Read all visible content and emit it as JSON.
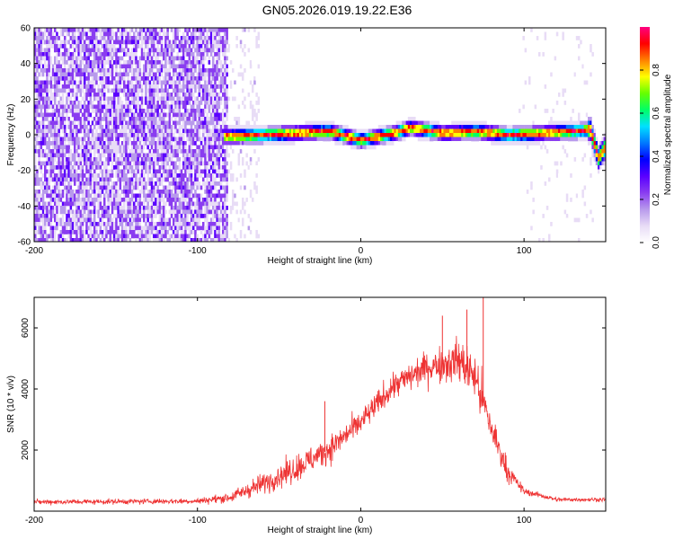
{
  "title": "GN05.2026.019.19.22.E36",
  "colorbar": {
    "label": "Normalized spectral amplitude",
    "ticks": [
      0.0,
      0.2,
      0.4,
      0.6,
      0.8
    ],
    "range": [
      0,
      1
    ],
    "colormap": [
      "#ffffff",
      "#e8dcf6",
      "#b89aec",
      "#8a3df0",
      "#5a00ff",
      "#0000ff",
      "#0078ff",
      "#00e0ff",
      "#00ff66",
      "#66ff00",
      "#ffff00",
      "#ff8000",
      "#ff0000",
      "#ff0080"
    ]
  },
  "chart_data": [
    {
      "type": "heatmap",
      "xlabel": "Height of straight line (km)",
      "ylabel": "Frequency (Hz)",
      "xlim": [
        -200,
        150
      ],
      "ylim": [
        -60,
        60
      ],
      "xticks": [
        -200,
        -100,
        0,
        100
      ],
      "yticks": [
        -60,
        -40,
        -20,
        0,
        20,
        40,
        60
      ],
      "description": "Noise band at low spectral amplitude for height below about -80 km; a narrow high-amplitude ridge near 0 Hz from -80 km to 150 km, dipping to about -15 Hz near 140 km",
      "ridge": {
        "x": [
          -82,
          -60,
          -40,
          -20,
          0,
          20,
          30,
          50,
          70,
          90,
          110,
          130,
          140,
          145,
          150
        ],
        "y": [
          0,
          1,
          2,
          3,
          -2,
          2,
          5,
          2,
          3,
          1,
          2,
          3,
          4,
          -12,
          -5
        ]
      }
    },
    {
      "type": "line",
      "xlabel": "Height of straight line (km)",
      "ylabel": "SNR (10 * v/v)",
      "xlim": [
        -200,
        150
      ],
      "ylim": [
        0,
        7000
      ],
      "xticks": [
        -200,
        -100,
        0,
        100
      ],
      "yticks": [
        2000,
        4000,
        6000
      ],
      "color": "#ee3333",
      "envelope": {
        "x": [
          -200,
          -100,
          -80,
          -60,
          -40,
          -20,
          0,
          20,
          40,
          60,
          70,
          80,
          90,
          100,
          120,
          150
        ],
        "mean": [
          300,
          330,
          450,
          900,
          1400,
          2000,
          2900,
          4100,
          4700,
          4950,
          4400,
          2700,
          1300,
          650,
          380,
          380
        ],
        "spread": [
          150,
          160,
          300,
          600,
          800,
          800,
          700,
          800,
          900,
          1300,
          1500,
          1100,
          600,
          200,
          120,
          120
        ]
      },
      "spikes": [
        {
          "x": -22,
          "y": 3600
        },
        {
          "x": 50,
          "y": 6400
        },
        {
          "x": 65,
          "y": 6600
        },
        {
          "x": 75,
          "y": 7000
        }
      ]
    }
  ]
}
